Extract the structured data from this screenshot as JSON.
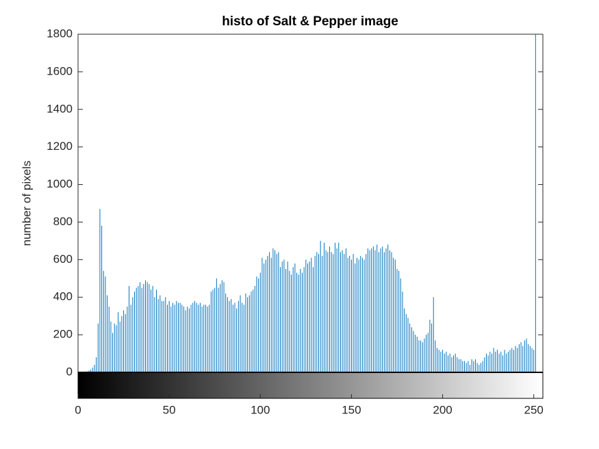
{
  "chart_data": {
    "type": "stem",
    "title": "histo of Salt & Pepper  image",
    "ylabel": "number of pixels",
    "color": "#0072bd",
    "xlim": [
      0,
      255
    ],
    "ylim": [
      0,
      1800
    ],
    "xticks": [
      0,
      50,
      100,
      150,
      200,
      250
    ],
    "yticks": [
      0,
      200,
      400,
      600,
      800,
      1000,
      1200,
      1400,
      1600,
      1800
    ],
    "x": [
      0,
      1,
      2,
      3,
      4,
      5,
      6,
      7,
      8,
      9,
      10,
      11,
      12,
      13,
      14,
      15,
      16,
      17,
      18,
      19,
      20,
      21,
      22,
      23,
      24,
      25,
      26,
      27,
      28,
      29,
      30,
      31,
      32,
      33,
      34,
      35,
      36,
      37,
      38,
      39,
      40,
      41,
      42,
      43,
      44,
      45,
      46,
      47,
      48,
      49,
      50,
      51,
      52,
      53,
      54,
      55,
      56,
      57,
      58,
      59,
      60,
      61,
      62,
      63,
      64,
      65,
      66,
      67,
      68,
      69,
      70,
      71,
      72,
      73,
      74,
      75,
      76,
      77,
      78,
      79,
      80,
      81,
      82,
      83,
      84,
      85,
      86,
      87,
      88,
      89,
      90,
      91,
      92,
      93,
      94,
      95,
      96,
      97,
      98,
      99,
      100,
      101,
      102,
      103,
      104,
      105,
      106,
      107,
      108,
      109,
      110,
      111,
      112,
      113,
      114,
      115,
      116,
      117,
      118,
      119,
      120,
      121,
      122,
      123,
      124,
      125,
      126,
      127,
      128,
      129,
      130,
      131,
      132,
      133,
      134,
      135,
      136,
      137,
      138,
      139,
      140,
      141,
      142,
      143,
      144,
      145,
      146,
      147,
      148,
      149,
      150,
      151,
      152,
      153,
      154,
      155,
      156,
      157,
      158,
      159,
      160,
      161,
      162,
      163,
      164,
      165,
      166,
      167,
      168,
      169,
      170,
      171,
      172,
      173,
      174,
      175,
      176,
      177,
      178,
      179,
      180,
      181,
      182,
      183,
      184,
      185,
      186,
      187,
      188,
      189,
      190,
      191,
      192,
      193,
      194,
      195,
      196,
      197,
      198,
      199,
      200,
      201,
      202,
      203,
      204,
      205,
      206,
      207,
      208,
      209,
      210,
      211,
      212,
      213,
      214,
      215,
      216,
      217,
      218,
      219,
      220,
      221,
      222,
      223,
      224,
      225,
      226,
      227,
      228,
      229,
      230,
      231,
      232,
      233,
      234,
      235,
      236,
      237,
      238,
      239,
      240,
      241,
      242,
      243,
      244,
      245,
      246,
      247,
      248,
      249,
      250,
      251,
      252,
      253,
      254,
      255
    ],
    "values": [
      0,
      0,
      0,
      0,
      0,
      5,
      10,
      15,
      25,
      40,
      80,
      260,
      870,
      780,
      540,
      510,
      410,
      350,
      270,
      210,
      260,
      250,
      320,
      270,
      300,
      330,
      310,
      350,
      460,
      360,
      400,
      430,
      450,
      460,
      480,
      450,
      470,
      490,
      480,
      470,
      440,
      460,
      400,
      440,
      390,
      410,
      380,
      380,
      400,
      360,
      380,
      350,
      370,
      360,
      380,
      370,
      370,
      360,
      350,
      330,
      350,
      340,
      360,
      370,
      380,
      370,
      360,
      370,
      350,
      360,
      360,
      350,
      360,
      430,
      440,
      450,
      500,
      450,
      470,
      490,
      480,
      420,
      400,
      380,
      390,
      360,
      370,
      340,
      380,
      410,
      370,
      360,
      420,
      400,
      410,
      430,
      440,
      460,
      510,
      500,
      530,
      610,
      580,
      600,
      620,
      640,
      610,
      660,
      650,
      630,
      640,
      560,
      590,
      600,
      550,
      590,
      540,
      520,
      560,
      580,
      530,
      520,
      550,
      530,
      560,
      600,
      580,
      590,
      610,
      560,
      620,
      640,
      630,
      700,
      620,
      690,
      650,
      640,
      670,
      640,
      630,
      690,
      660,
      690,
      640,
      650,
      630,
      660,
      610,
      620,
      600,
      630,
      580,
      610,
      600,
      620,
      610,
      600,
      630,
      660,
      650,
      660,
      670,
      650,
      680,
      640,
      660,
      670,
      640,
      660,
      680,
      650,
      640,
      610,
      600,
      550,
      540,
      500,
      430,
      340,
      310,
      290,
      260,
      240,
      220,
      200,
      190,
      170,
      170,
      160,
      180,
      200,
      210,
      280,
      260,
      400,
      170,
      130,
      120,
      110,
      120,
      100,
      110,
      90,
      100,
      80,
      90,
      100,
      80,
      70,
      70,
      60,
      60,
      50,
      60,
      40,
      70,
      60,
      70,
      50,
      40,
      50,
      60,
      80,
      100,
      90,
      110,
      100,
      130,
      110,
      120,
      100,
      110,
      90,
      120,
      100,
      110,
      120,
      130,
      120,
      140,
      130,
      150,
      160,
      140,
      170,
      180,
      150,
      140,
      130,
      120,
      1800,
      0,
      0,
      0,
      0
    ]
  }
}
